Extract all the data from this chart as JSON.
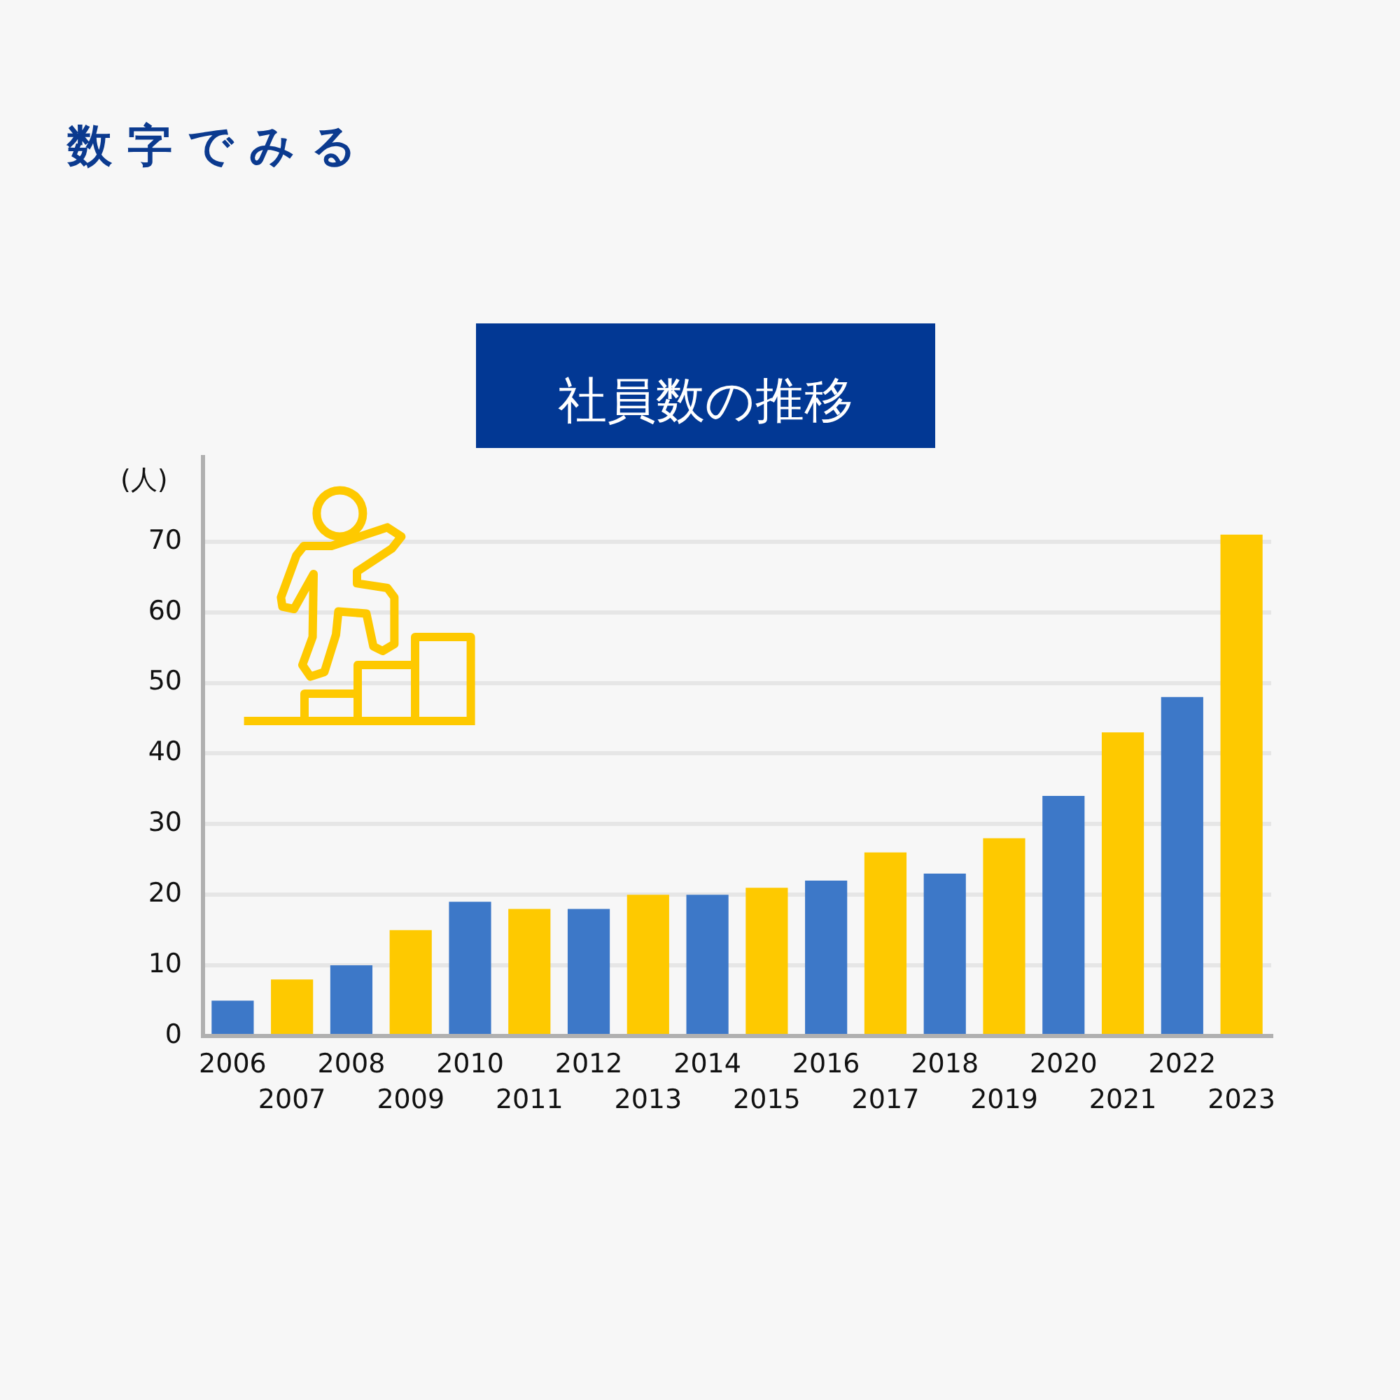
{
  "chart_data": {
    "type": "bar",
    "title": "社員数の推移",
    "annotations": [
      "数字でみる"
    ],
    "ylabel": "(人)",
    "categories": [
      "2006",
      "2007",
      "2008",
      "2009",
      "2010",
      "2011",
      "2012",
      "2013",
      "2014",
      "2015",
      "2016",
      "2017",
      "2018",
      "2019",
      "2020",
      "2021",
      "2022",
      "2023"
    ],
    "values": [
      5,
      8,
      10,
      15,
      19,
      18,
      18,
      20,
      20,
      21,
      22,
      26,
      23,
      28,
      34,
      43,
      48,
      71
    ],
    "colors": [
      "#3d78c8",
      "#fec900",
      "#3d78c8",
      "#fec900",
      "#3d78c8",
      "#fec900",
      "#3d78c8",
      "#fec900",
      "#3d78c8",
      "#fec900",
      "#3d78c8",
      "#fec900",
      "#3d78c8",
      "#fec900",
      "#3d78c8",
      "#fec900",
      "#3d78c8",
      "#fec900"
    ],
    "ylim": [
      0,
      82
    ],
    "yticks": [
      0,
      10,
      20,
      30,
      40,
      50,
      60,
      70
    ],
    "grid": "y"
  }
}
